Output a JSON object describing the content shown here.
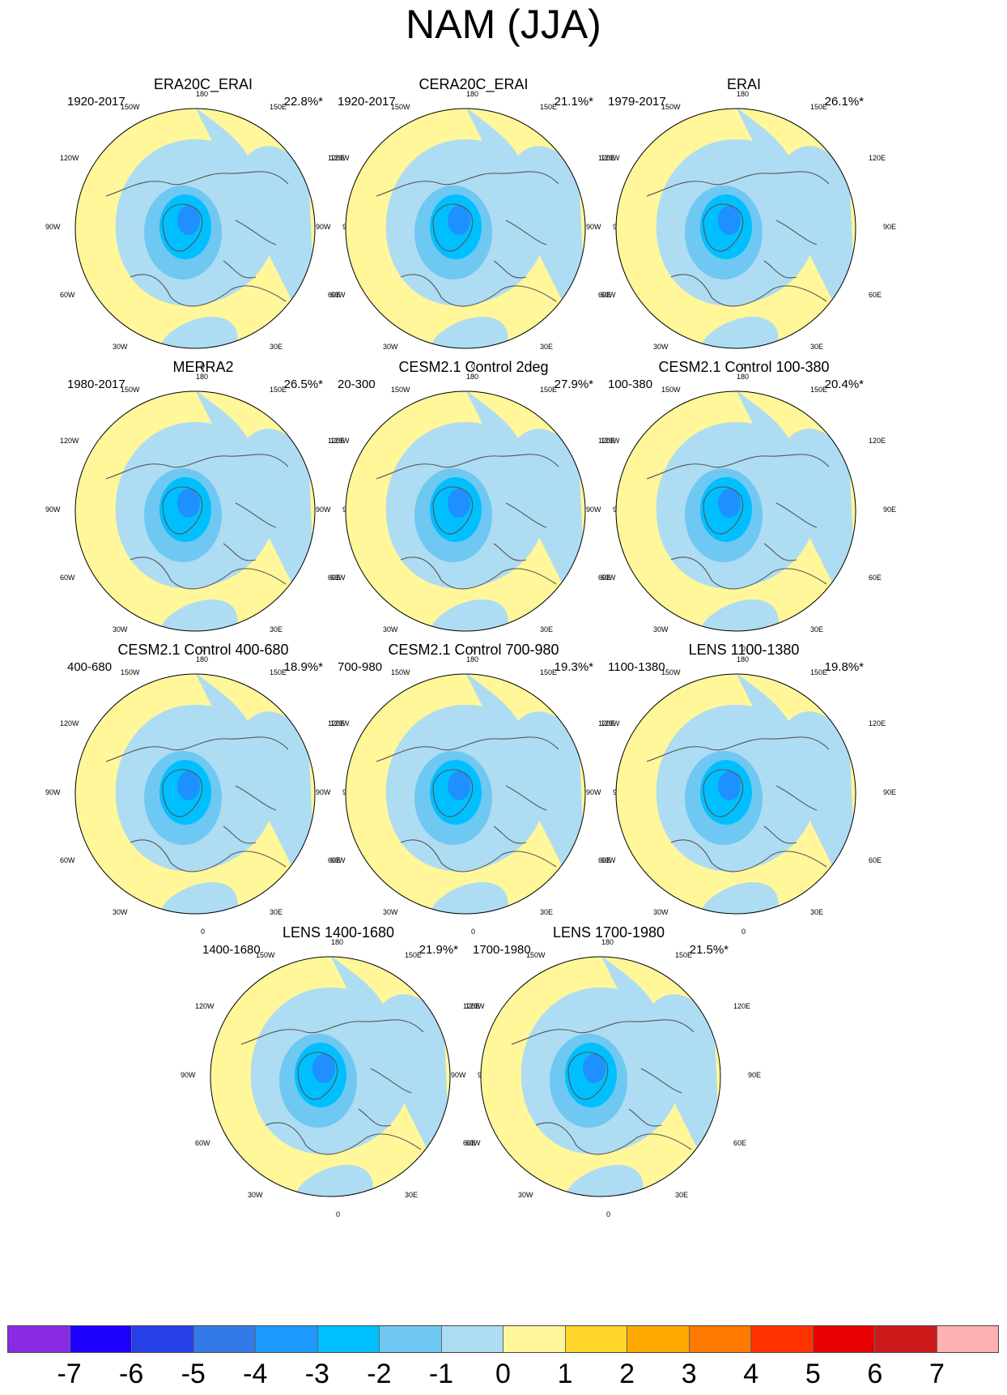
{
  "title": "NAM (JJA)",
  "lon_labels": {
    "l180": "180",
    "l150w": "150W",
    "l150e": "150E",
    "l120w": "120W",
    "l120e": "120E",
    "l90w": "90W",
    "l90e": "90E",
    "l60w": "60W",
    "l60e": "60E",
    "l30w": "30W",
    "l30e": "30E",
    "l0": "0"
  },
  "colors": {
    "ocean_neg": "#aedcf2",
    "pos": "#fff79a",
    "neg2": "#6ec8f2",
    "neg3": "#00bfff",
    "neg4": "#1e90ff",
    "pos2": "#ffd52a",
    "coast": "#555555"
  },
  "panels": [
    {
      "title": "ERA20C_ERAI",
      "period": "1920-2017",
      "pct": "22.8%*"
    },
    {
      "title": "CERA20C_ERAI",
      "period": "1920-2017",
      "pct": "21.1%*"
    },
    {
      "title": "ERAI",
      "period": "1979-2017",
      "pct": "26.1%*"
    },
    {
      "title": "MERRA2",
      "period": "1980-2017",
      "pct": "26.5%*"
    },
    {
      "title": "CESM2.1 Control 2deg",
      "period": "20-300",
      "pct": "27.9%*"
    },
    {
      "title": "CESM2.1 Control 100-380",
      "period": "100-380",
      "pct": "20.4%*"
    },
    {
      "title": "CESM2.1 Control 400-680",
      "period": "400-680",
      "pct": "18.9%*"
    },
    {
      "title": "CESM2.1 Control 700-980",
      "period": "700-980",
      "pct": "19.3%*"
    },
    {
      "title": "LENS 1100-1380",
      "period": "1100-1380",
      "pct": "19.8%*"
    },
    {
      "title": "LENS 1400-1680",
      "period": "1400-1680",
      "pct": "21.9%*"
    },
    {
      "title": "LENS 1700-1980",
      "period": "1700-1980",
      "pct": "21.5%*"
    }
  ],
  "colorbar": {
    "colors": [
      "#8a2be2",
      "#1e00ff",
      "#2840e8",
      "#3479e8",
      "#1f9aff",
      "#00bfff",
      "#6ec8f2",
      "#aedcf2",
      "#fff79a",
      "#ffd52a",
      "#ffaa00",
      "#ff7a00",
      "#ff3300",
      "#e60000",
      "#cc1a1a",
      "#ffb0b0"
    ],
    "ticks": [
      "-7",
      "-6",
      "-5",
      "-4",
      "-3",
      "-2",
      "-1",
      "0",
      "1",
      "2",
      "3",
      "4",
      "5",
      "6",
      "7"
    ]
  }
}
